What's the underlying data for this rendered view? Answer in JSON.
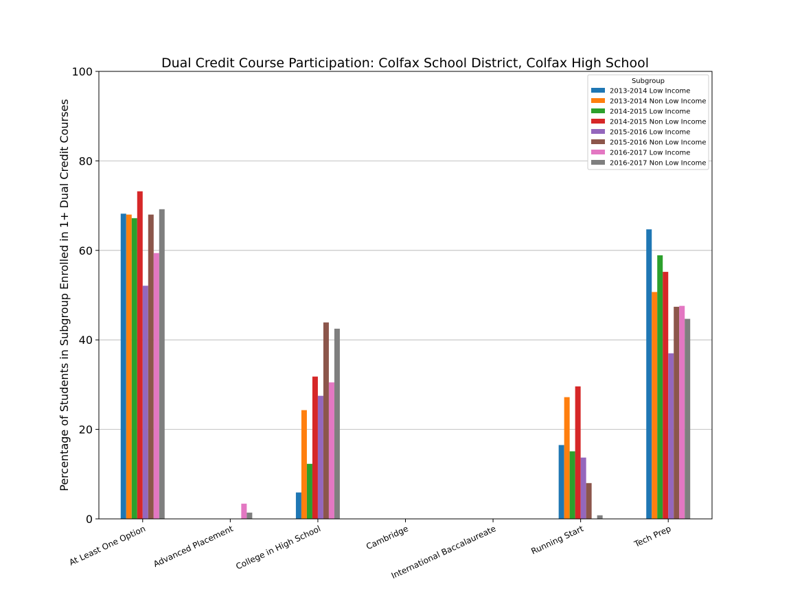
{
  "chart_data": {
    "type": "bar",
    "title": "Dual Credit Course Participation: Colfax School District, Colfax High School",
    "xlabel": "",
    "ylabel": "Percentage of Students in Subgroup Enrolled in 1+ Dual Credit Courses",
    "ylim": [
      0,
      100
    ],
    "yticks": [
      0,
      20,
      40,
      60,
      80,
      100
    ],
    "ytick_labels": [
      "0",
      "20",
      "40",
      "60",
      "80",
      "100"
    ],
    "grid": "horizontal",
    "legend_title": "Subgroup",
    "legend_position": "top-right",
    "categories": [
      "At Least One Option",
      "Advanced Placement",
      "College in High School",
      "Cambridge",
      "International Baccalaureate",
      "Running Start",
      "Tech Prep"
    ],
    "series": [
      {
        "name": "2013-2014 Low Income",
        "color": "#1f77b4",
        "values": [
          68.2,
          0,
          5.9,
          0,
          0,
          16.5,
          64.7
        ]
      },
      {
        "name": "2013-2014 Non Low Income",
        "color": "#ff7f0e",
        "values": [
          68.0,
          0,
          24.3,
          0,
          0,
          27.2,
          50.7
        ]
      },
      {
        "name": "2014-2015 Low Income",
        "color": "#2ca02c",
        "values": [
          67.2,
          0,
          12.3,
          0,
          0,
          15.1,
          58.9
        ]
      },
      {
        "name": "2014-2015 Non Low Income",
        "color": "#d62728",
        "values": [
          73.2,
          0,
          31.8,
          0,
          0,
          29.6,
          55.2
        ]
      },
      {
        "name": "2015-2016 Low Income",
        "color": "#9467bd",
        "values": [
          52.1,
          0,
          27.5,
          0,
          0,
          13.7,
          37.0
        ]
      },
      {
        "name": "2015-2016 Non Low Income",
        "color": "#8c564b",
        "values": [
          68.0,
          0,
          43.9,
          0,
          0,
          8.0,
          47.4
        ]
      },
      {
        "name": "2016-2017 Low Income",
        "color": "#e377c2",
        "values": [
          59.4,
          3.4,
          30.5,
          0,
          0,
          0,
          47.6
        ]
      },
      {
        "name": "2016-2017 Non Low Income",
        "color": "#7f7f7f",
        "values": [
          69.2,
          1.4,
          42.5,
          0,
          0,
          0.8,
          44.7
        ]
      }
    ]
  }
}
